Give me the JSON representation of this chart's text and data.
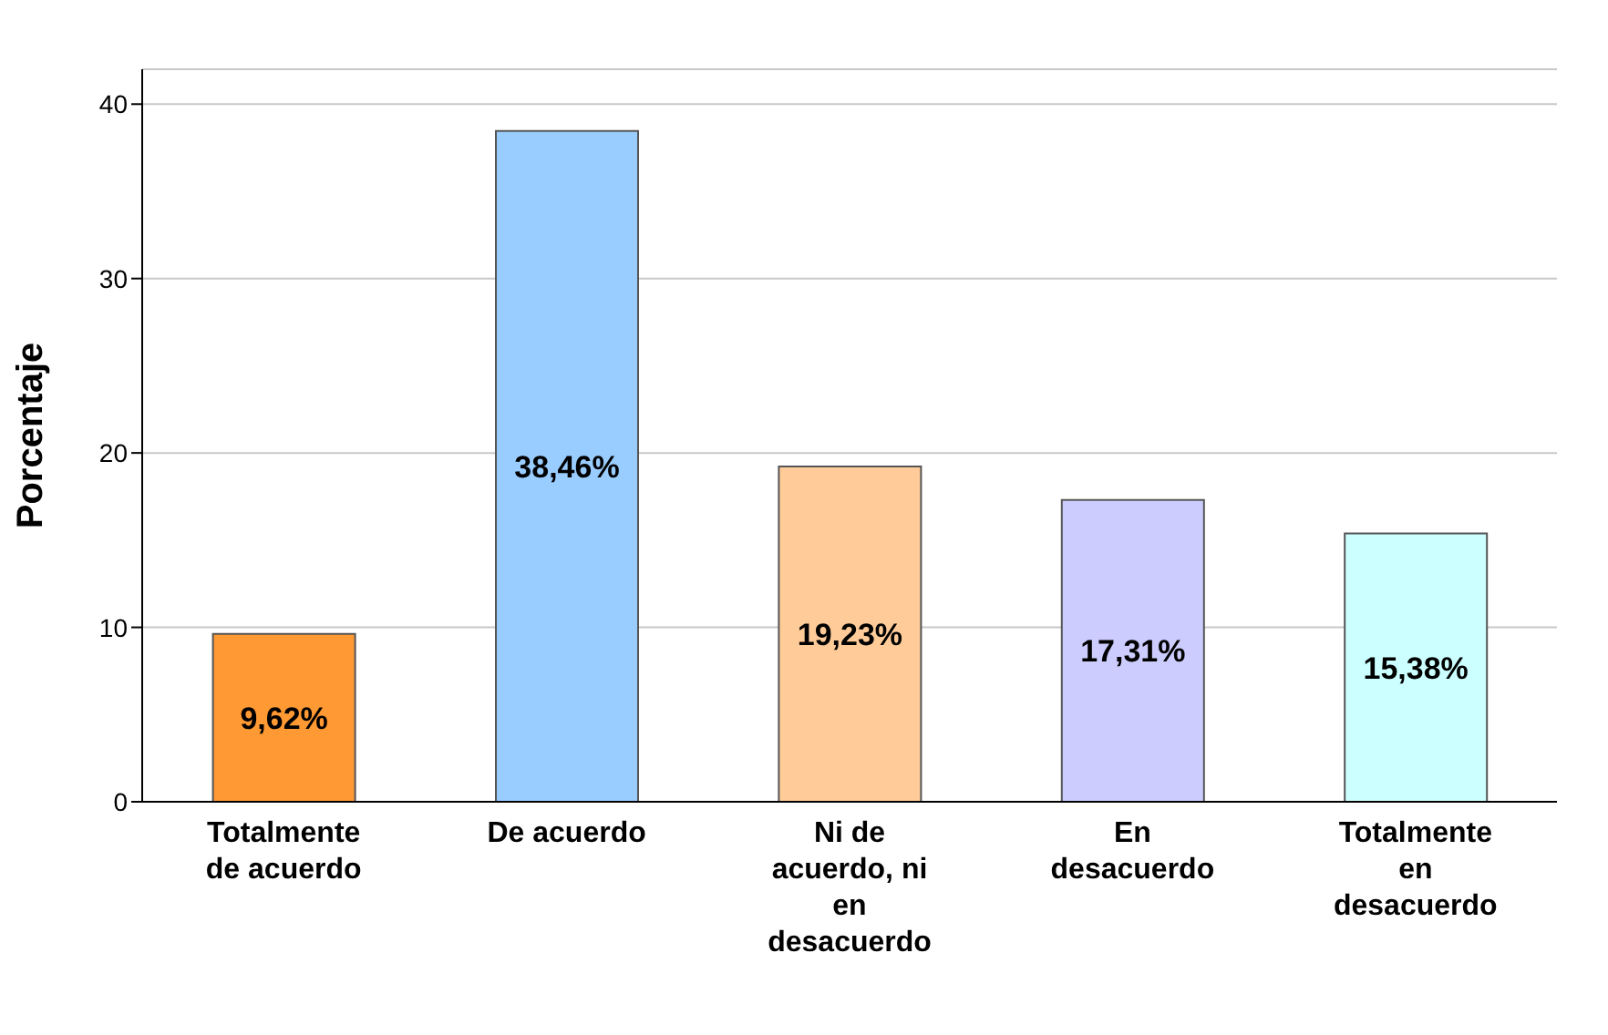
{
  "chart_data": {
    "type": "bar",
    "ylabel": "Porcentaje",
    "categories": [
      "Totalmente de acuerdo",
      "De acuerdo",
      "Ni de acuerdo, ni en desacuerdo",
      "En desacuerdo",
      "Totalmente en desacuerdo"
    ],
    "values": [
      9.62,
      38.46,
      19.23,
      17.31,
      15.38
    ],
    "value_labels": [
      "9,62%",
      "38,46%",
      "19,23%",
      "17,31%",
      "15,38%"
    ],
    "colors": [
      "#ff9933",
      "#99ccff",
      "#ffcc99",
      "#ccccff",
      "#ccffff"
    ],
    "ylim": [
      0,
      42
    ],
    "yticks": [
      0,
      10,
      20,
      30,
      40
    ],
    "grid": "y"
  }
}
